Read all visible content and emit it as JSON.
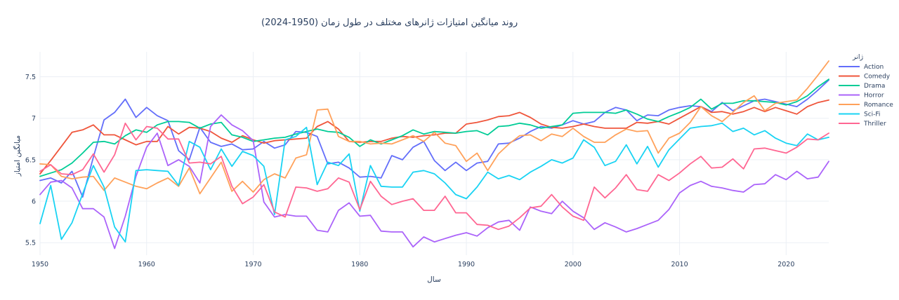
{
  "chart_data": {
    "type": "line",
    "title": "روند میانگین امتیازات ژانرهای مختلف در طول زمان (1950-2024)",
    "xlabel": "سال",
    "ylabel": "میانگین امتیاز",
    "xlim": [
      1950,
      2024
    ],
    "ylim": [
      5.35,
      7.8
    ],
    "x_ticks": [
      1950,
      1960,
      1970,
      1980,
      1990,
      2000,
      2010,
      2020
    ],
    "y_ticks": [
      5.5,
      6,
      6.5,
      7,
      7.5
    ],
    "x_tick_labels": [
      "1950",
      "1960",
      "1970",
      "1980",
      "1990",
      "2000",
      "2010",
      "2020"
    ],
    "y_tick_labels": [
      "5.5",
      "6",
      "6.5",
      "7",
      "7.5"
    ],
    "grid": true,
    "legend_title": "ژانر",
    "legend_position": "right",
    "x": [
      1950,
      1951,
      1952,
      1953,
      1954,
      1955,
      1956,
      1957,
      1958,
      1959,
      1960,
      1961,
      1962,
      1963,
      1964,
      1965,
      1966,
      1967,
      1968,
      1969,
      1970,
      1971,
      1972,
      1973,
      1974,
      1975,
      1976,
      1977,
      1978,
      1979,
      1980,
      1981,
      1982,
      1983,
      1984,
      1985,
      1986,
      1987,
      1988,
      1989,
      1990,
      1991,
      1992,
      1993,
      1994,
      1995,
      1996,
      1997,
      1998,
      1999,
      2000,
      2001,
      2002,
      2003,
      2004,
      2005,
      2006,
      2007,
      2008,
      2009,
      2010,
      2011,
      2012,
      2013,
      2014,
      2015,
      2016,
      2017,
      2018,
      2019,
      2020,
      2021,
      2022,
      2023,
      2024
    ],
    "series": [
      {
        "name": "Action",
        "color": "#636efa",
        "values": [
          6.25,
          6.28,
          6.22,
          6.36,
          6.05,
          6.53,
          6.98,
          7.07,
          7.23,
          7.01,
          7.13,
          7.03,
          6.97,
          6.61,
          6.5,
          6.89,
          6.71,
          6.66,
          6.69,
          6.62,
          6.63,
          6.72,
          6.64,
          6.68,
          6.84,
          6.83,
          6.78,
          6.45,
          6.47,
          6.4,
          6.29,
          6.3,
          6.28,
          6.55,
          6.5,
          6.65,
          6.72,
          6.49,
          6.37,
          6.47,
          6.37,
          6.46,
          6.48,
          6.69,
          6.7,
          6.76,
          6.84,
          6.9,
          6.88,
          6.92,
          6.97,
          6.93,
          6.96,
          7.07,
          7.13,
          7.1,
          6.97,
          7.04,
          7.03,
          7.1,
          7.13,
          7.15,
          7.14,
          7.08,
          7.19,
          7.09,
          7.15,
          7.21,
          7.23,
          7.2,
          7.17,
          7.14,
          7.23,
          7.34,
          7.46
        ]
      },
      {
        "name": "Comedy",
        "color": "#EF553B",
        "values": [
          6.33,
          6.49,
          6.66,
          6.83,
          6.86,
          6.92,
          6.8,
          6.8,
          6.74,
          6.68,
          6.72,
          6.72,
          6.9,
          6.81,
          6.89,
          6.88,
          6.84,
          6.76,
          6.71,
          6.79,
          6.74,
          6.7,
          6.73,
          6.74,
          6.75,
          6.76,
          6.9,
          6.96,
          6.87,
          6.72,
          6.71,
          6.72,
          6.72,
          6.76,
          6.78,
          6.77,
          6.79,
          6.8,
          6.82,
          6.82,
          6.93,
          6.95,
          6.98,
          7.02,
          7.03,
          7.07,
          7.01,
          6.93,
          6.89,
          6.88,
          6.9,
          6.93,
          6.9,
          6.88,
          6.88,
          6.88,
          6.95,
          6.94,
          6.96,
          6.93,
          7.0,
          7.07,
          7.14,
          7.07,
          7.08,
          7.05,
          7.08,
          7.13,
          7.08,
          7.13,
          7.09,
          7.05,
          7.14,
          7.19,
          7.22
        ]
      },
      {
        "name": "Drama",
        "color": "#00cc96",
        "values": [
          6.3,
          6.34,
          6.38,
          6.46,
          6.58,
          6.71,
          6.72,
          6.69,
          6.79,
          6.86,
          6.83,
          6.92,
          6.96,
          6.96,
          6.95,
          6.88,
          6.93,
          6.95,
          6.8,
          6.77,
          6.72,
          6.74,
          6.76,
          6.77,
          6.81,
          6.84,
          6.87,
          6.84,
          6.83,
          6.77,
          6.66,
          6.74,
          6.69,
          6.74,
          6.79,
          6.86,
          6.81,
          6.84,
          6.83,
          6.82,
          6.84,
          6.85,
          6.8,
          6.9,
          6.91,
          6.94,
          6.92,
          6.88,
          6.9,
          6.92,
          7.06,
          7.07,
          7.07,
          7.07,
          7.06,
          7.1,
          7.05,
          6.99,
          6.96,
          7.02,
          7.07,
          7.13,
          7.23,
          7.11,
          7.18,
          7.18,
          7.21,
          7.21,
          7.2,
          7.19,
          7.16,
          7.2,
          7.27,
          7.38,
          7.47
        ]
      },
      {
        "name": "Horror",
        "color": "#ab63fa",
        "values": [
          6.08,
          6.23,
          6.25,
          6.16,
          5.91,
          5.91,
          5.81,
          5.43,
          5.82,
          6.3,
          6.65,
          6.82,
          6.43,
          6.5,
          6.42,
          6.22,
          6.9,
          7.04,
          6.92,
          6.85,
          6.73,
          5.99,
          5.81,
          5.84,
          5.82,
          5.82,
          5.65,
          5.63,
          5.89,
          5.98,
          5.82,
          5.83,
          5.64,
          5.63,
          5.63,
          5.45,
          5.57,
          5.51,
          5.55,
          5.59,
          5.62,
          5.58,
          5.68,
          5.75,
          5.77,
          5.65,
          5.93,
          5.88,
          5.85,
          6.0,
          5.88,
          5.8,
          5.66,
          5.74,
          5.69,
          5.63,
          5.67,
          5.72,
          5.77,
          5.9,
          6.1,
          6.19,
          6.24,
          6.18,
          6.16,
          6.13,
          6.11,
          6.2,
          6.21,
          6.32,
          6.26,
          6.36,
          6.27,
          6.29,
          6.48
        ]
      },
      {
        "name": "Romance",
        "color": "#FFA15A",
        "values": [
          6.45,
          6.44,
          6.3,
          6.27,
          6.29,
          6.3,
          6.13,
          6.28,
          6.23,
          6.18,
          6.15,
          6.22,
          6.28,
          6.18,
          6.4,
          6.09,
          6.28,
          6.47,
          6.12,
          6.24,
          6.11,
          6.26,
          6.33,
          6.28,
          6.52,
          6.56,
          7.1,
          7.11,
          6.78,
          6.72,
          6.72,
          6.69,
          6.7,
          6.69,
          6.74,
          6.79,
          6.72,
          6.83,
          6.7,
          6.67,
          6.48,
          6.58,
          6.37,
          6.57,
          6.69,
          6.79,
          6.8,
          6.73,
          6.81,
          6.78,
          6.88,
          6.78,
          6.71,
          6.71,
          6.8,
          6.87,
          6.84,
          6.85,
          6.58,
          6.76,
          6.82,
          6.95,
          7.14,
          7.03,
          6.96,
          7.07,
          7.19,
          7.27,
          7.09,
          7.18,
          7.2,
          7.22,
          7.36,
          7.52,
          7.69
        ]
      },
      {
        "name": "Sci-Fi",
        "color": "#19d3f3",
        "values": [
          5.73,
          6.19,
          5.54,
          5.74,
          6.09,
          6.43,
          6.17,
          5.69,
          5.51,
          6.37,
          6.38,
          6.37,
          6.36,
          6.19,
          6.72,
          6.65,
          6.38,
          6.63,
          6.42,
          6.6,
          6.55,
          6.42,
          5.84,
          6.74,
          6.78,
          6.89,
          6.2,
          6.47,
          6.43,
          6.57,
          5.88,
          6.43,
          6.18,
          6.17,
          6.17,
          6.35,
          6.37,
          6.33,
          6.22,
          6.08,
          6.03,
          6.17,
          6.35,
          6.27,
          6.31,
          6.26,
          6.35,
          6.42,
          6.5,
          6.46,
          6.52,
          6.74,
          6.65,
          6.43,
          6.48,
          6.68,
          6.45,
          6.66,
          6.41,
          6.62,
          6.75,
          6.88,
          6.9,
          6.91,
          6.94,
          6.84,
          6.88,
          6.8,
          6.85,
          6.76,
          6.7,
          6.67,
          6.81,
          6.74,
          6.77
        ]
      },
      {
        "name": "Thriller",
        "color": "#FF6692",
        "values": [
          6.36,
          6.44,
          6.33,
          6.32,
          6.38,
          6.57,
          6.35,
          6.56,
          6.94,
          6.74,
          6.9,
          6.88,
          6.75,
          6.75,
          6.46,
          6.47,
          6.45,
          6.54,
          6.18,
          5.97,
          6.05,
          6.2,
          5.87,
          5.81,
          6.17,
          6.16,
          6.12,
          6.15,
          6.28,
          6.23,
          5.9,
          6.24,
          6.06,
          5.96,
          6.0,
          6.03,
          5.89,
          5.89,
          6.06,
          5.86,
          5.86,
          5.72,
          5.71,
          5.66,
          5.7,
          5.8,
          5.92,
          5.94,
          6.08,
          5.93,
          5.82,
          5.77,
          6.17,
          6.04,
          6.16,
          6.32,
          6.14,
          6.12,
          6.32,
          6.25,
          6.34,
          6.45,
          6.54,
          6.4,
          6.41,
          6.51,
          6.39,
          6.63,
          6.64,
          6.61,
          6.58,
          6.65,
          6.75,
          6.74,
          6.82
        ]
      }
    ]
  }
}
